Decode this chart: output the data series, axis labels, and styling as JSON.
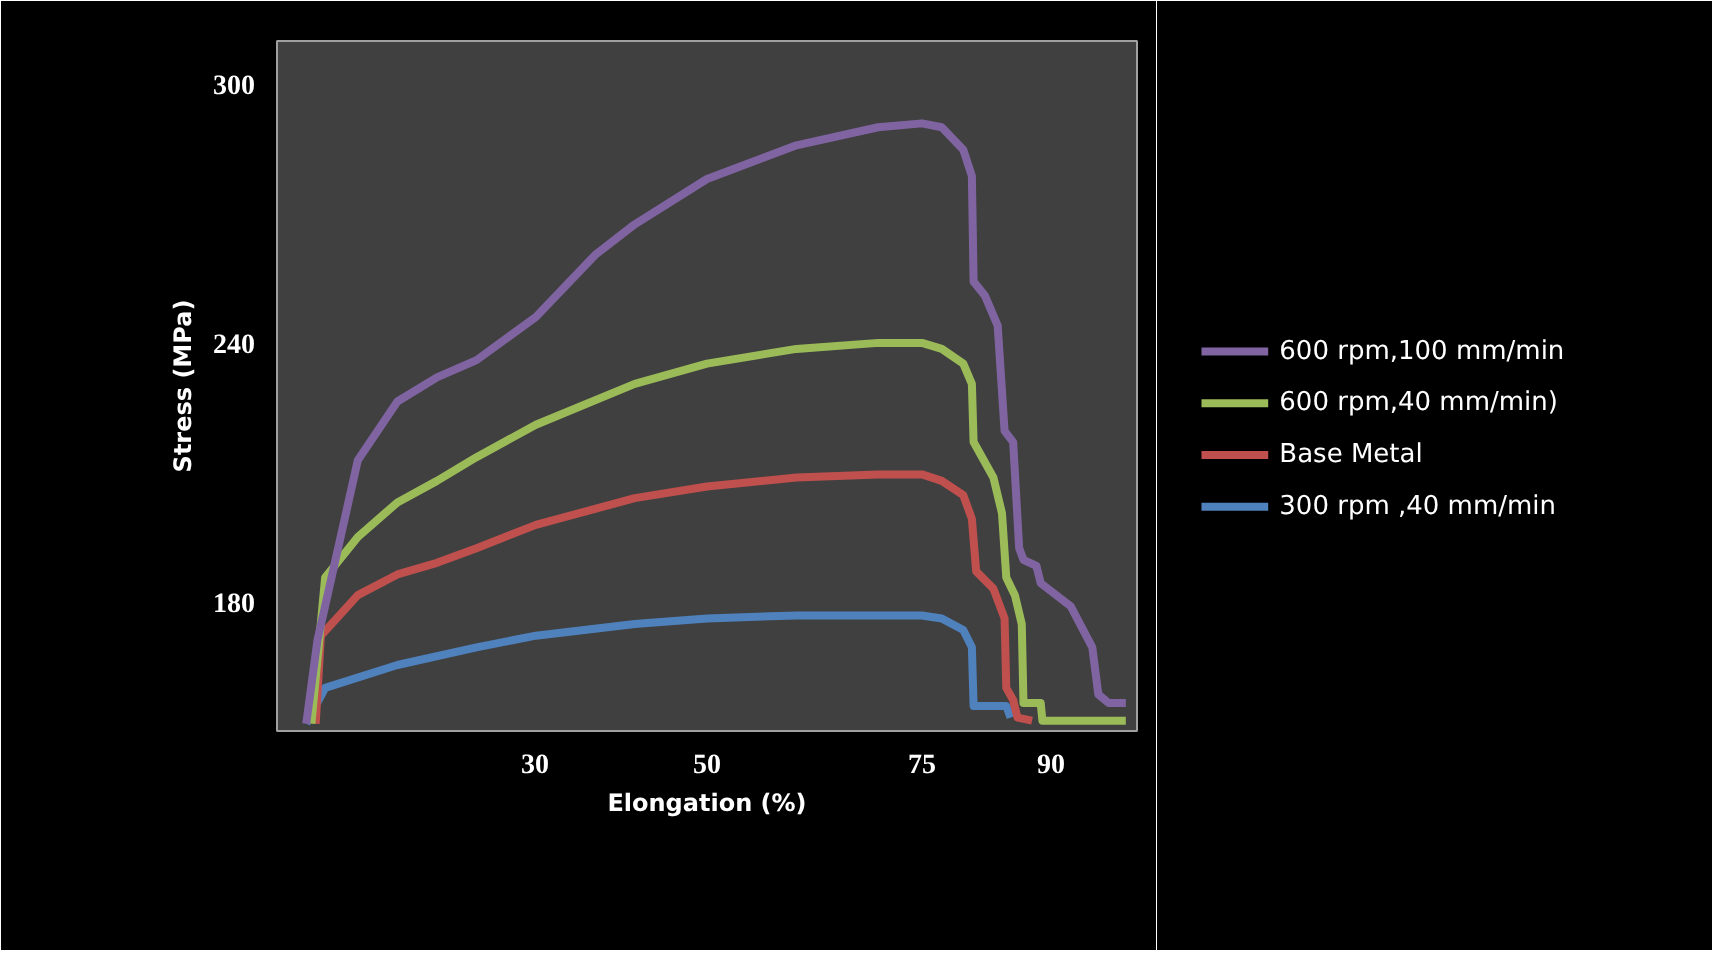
{
  "chart_data": {
    "type": "line",
    "xlabel": "Elongation (%)",
    "ylabel": "Stress (MPa)",
    "xlim": [
      0,
      100
    ],
    "ylim": [
      150,
      310
    ],
    "xticks": [
      30,
      50,
      75,
      90
    ],
    "yticks": [
      180,
      240,
      300
    ],
    "grid": false,
    "legend": "right",
    "line_style": "solid",
    "marker": "none",
    "series": [
      {
        "name": "600 rpm,100 mm/min",
        "color": "#8064a2",
        "x": [
          3.4,
          4.7,
          9.4,
          14.0,
          18.6,
          23.2,
          30.1,
          37.0,
          41.6,
          50.0,
          60.4,
          69.9,
          75.0,
          77.3,
          79.8,
          80.8,
          81.0,
          82.3,
          83.8,
          84.6,
          85.6,
          86.3,
          86.8,
          88.3,
          88.8,
          92.3,
          94.8,
          95.5,
          96.7,
          98.7
        ],
        "values": [
          151.7,
          171,
          212.8,
          226.4,
          232,
          236,
          246,
          260.4,
          267.5,
          278,
          285.8,
          290,
          290.9,
          290,
          284.8,
          278.7,
          254.2,
          251,
          244,
          219.6,
          217,
          192.4,
          189.7,
          188.3,
          184.3,
          178.9,
          169.4,
          158.5,
          156.5,
          156.5
        ]
      },
      {
        "name": "600 rpm,40 mm/min)",
        "color": "#9bbb59",
        "x": [
          4.0,
          5.6,
          9.4,
          14.0,
          18.6,
          23.2,
          30.1,
          41.6,
          50.0,
          60.4,
          69.9,
          75.0,
          77.3,
          79.8,
          80.8,
          81.0,
          83.3,
          84.3,
          84.8,
          85.8,
          86.6,
          86.8,
          88.8,
          89.0,
          98.7
        ],
        "values": [
          151.7,
          185.6,
          195,
          203,
          208,
          213.5,
          221,
          230.5,
          235.2,
          238.6,
          240,
          240,
          238.6,
          235.2,
          230.5,
          217,
          208.8,
          200.5,
          185.6,
          181.5,
          174.8,
          156.5,
          156.5,
          152.4,
          152.4
        ]
      },
      {
        "name": "Base Metal",
        "color": "#c0504d",
        "x": [
          4.5,
          5.1,
          9.4,
          14.0,
          18.6,
          23.2,
          30.1,
          41.6,
          50.0,
          60.4,
          69.9,
          75.0,
          77.3,
          79.8,
          80.8,
          81.3,
          83.3,
          84.6,
          84.8,
          85.6,
          86.1,
          87.8
        ],
        "values": [
          151.7,
          172.1,
          181.5,
          186.3,
          189,
          192.4,
          197.8,
          204,
          206.7,
          208.8,
          209.5,
          209.5,
          208,
          204.7,
          199.2,
          187,
          183,
          176.1,
          160,
          157.2,
          153.1,
          152.4
        ]
      },
      {
        "name": "300 rpm ,40 mm/min",
        "color": "#4f81bd",
        "x": [
          3.4,
          5.6,
          14.0,
          23.2,
          30.1,
          41.6,
          50.0,
          60.4,
          75.0,
          77.3,
          79.8,
          80.8,
          81.0,
          84.8,
          85.3
        ],
        "values": [
          151.7,
          160,
          165.3,
          169.4,
          172.1,
          174.8,
          176.1,
          176.8,
          176.8,
          176.1,
          173.4,
          169.4,
          155.8,
          155.8,
          153.1
        ]
      }
    ]
  }
}
